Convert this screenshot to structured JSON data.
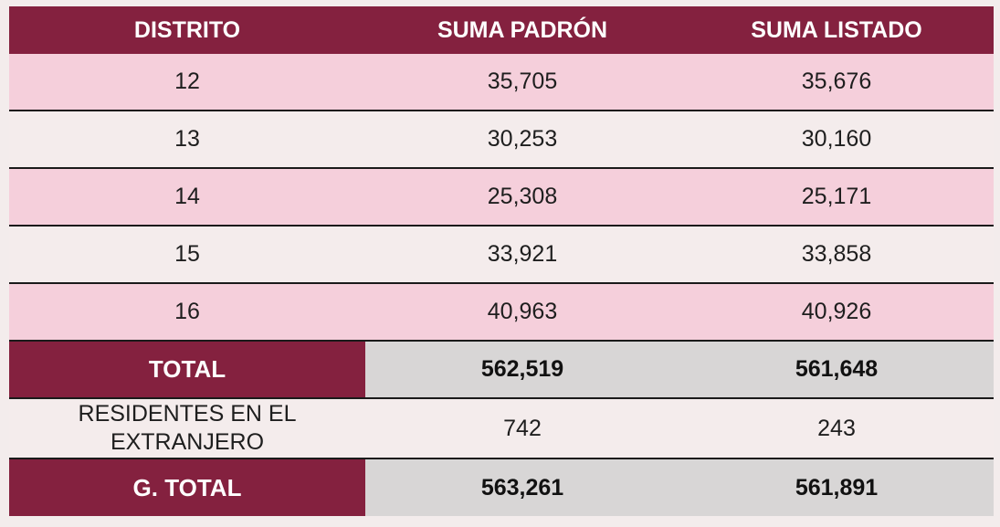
{
  "headers": [
    "DISTRITO",
    "SUMA PADRÓN",
    "SUMA LISTADO"
  ],
  "rows": [
    {
      "distrito": "12",
      "padron": "35,705",
      "listado": "35,676"
    },
    {
      "distrito": "13",
      "padron": "30,253",
      "listado": "30,160"
    },
    {
      "distrito": "14",
      "padron": "25,308",
      "listado": "25,171"
    },
    {
      "distrito": "15",
      "padron": "33,921",
      "listado": "33,858"
    },
    {
      "distrito": "16",
      "padron": "40,963",
      "listado": "40,926"
    }
  ],
  "total": {
    "label": "TOTAL",
    "padron": "562,519",
    "listado": "561,648"
  },
  "residentes": {
    "label_line1": "RESIDENTES EN EL",
    "label_line2": "EXTRANJERO",
    "padron": "742",
    "listado": "243"
  },
  "grand_total": {
    "label": "G. TOTAL",
    "padron": "563,261",
    "listado": "561,891"
  },
  "colors": {
    "header": "#84213f",
    "row": "#f5cfdb",
    "total_value_bg": "#d8d6d6"
  }
}
